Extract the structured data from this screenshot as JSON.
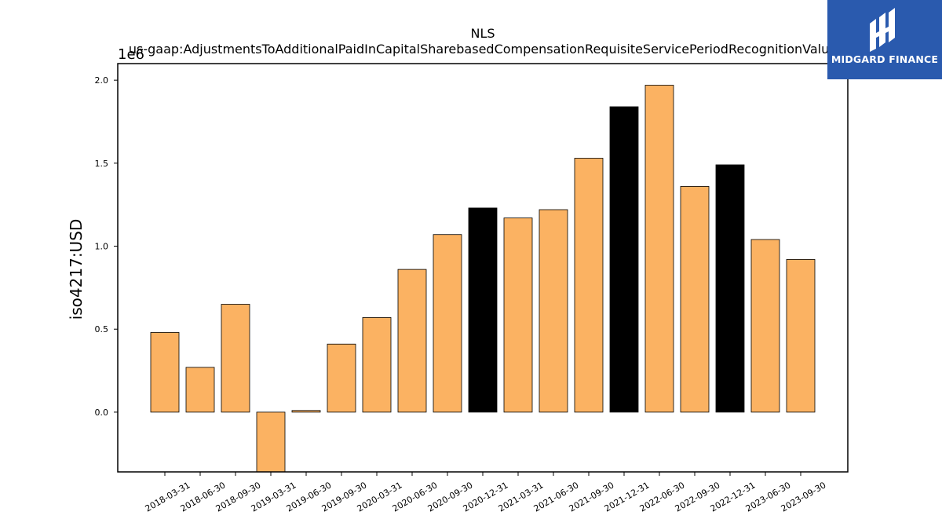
{
  "logo": {
    "text": "MIDGARD FINANCE",
    "color": "#2a5aae"
  },
  "chart_data": {
    "type": "bar",
    "title": "NLS",
    "subtitle": "us-gaap:AdjustmentsToAdditionalPaidInCapitalSharebasedCompensationRequisiteServicePeriodRecognitionValue",
    "ylabel": "iso4217:USD",
    "xlabel": "",
    "y_offset_label": "1e6",
    "ylim": [
      -0.36,
      2.1
    ],
    "yticks": [
      0.0,
      0.5,
      1.0,
      1.5,
      2.0
    ],
    "ytick_labels": [
      "0.0",
      "0.5",
      "1.0",
      "1.5",
      "2.0"
    ],
    "grid": false,
    "categories": [
      "2018-03-31",
      "2018-06-30",
      "2018-09-30",
      "2019-03-31",
      "2019-06-30",
      "2019-09-30",
      "2020-03-31",
      "2020-06-30",
      "2020-09-30",
      "2020-12-31",
      "2021-03-31",
      "2021-06-30",
      "2021-09-30",
      "2021-12-31",
      "2022-06-30",
      "2022-09-30",
      "2022-12-31",
      "2023-06-30",
      "2023-09-30"
    ],
    "values": [
      0.48,
      0.27,
      0.65,
      -0.37,
      0.01,
      0.41,
      0.57,
      0.86,
      1.07,
      1.23,
      1.17,
      1.22,
      1.53,
      1.84,
      1.97,
      1.36,
      1.49,
      1.04,
      0.92
    ],
    "bar_colors": [
      "#fbb262",
      "#fbb262",
      "#fbb262",
      "#fbb262",
      "#fbb262",
      "#fbb262",
      "#fbb262",
      "#fbb262",
      "#fbb262",
      "#000000",
      "#fbb262",
      "#fbb262",
      "#fbb262",
      "#000000",
      "#fbb262",
      "#fbb262",
      "#000000",
      "#fbb262",
      "#fbb262"
    ]
  }
}
